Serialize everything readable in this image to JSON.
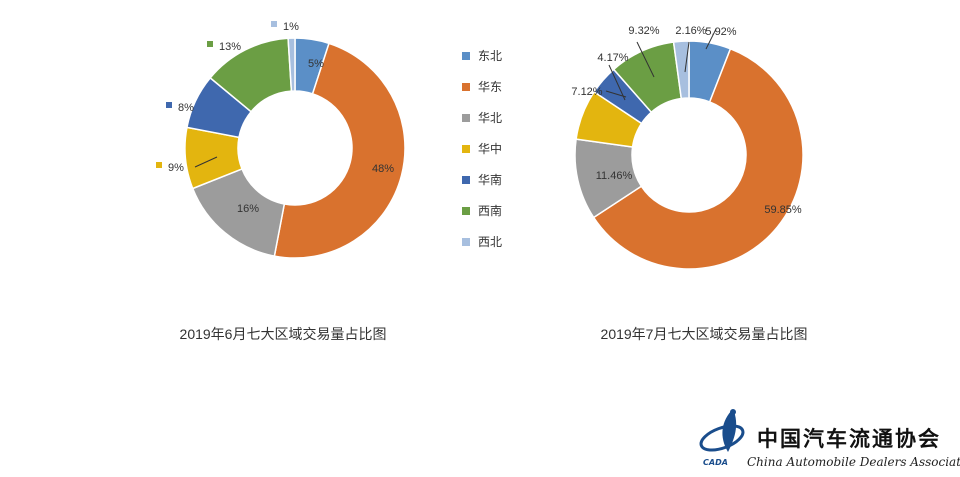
{
  "colors": {
    "东北": "#5b8fc7",
    "华东": "#d9722e",
    "华北": "#9c9c9c",
    "华中": "#e3b50f",
    "华南": "#3f68ae",
    "西南": "#6b9e44",
    "西北": "#a7bfdf"
  },
  "legend": [
    "东北",
    "华东",
    "华北",
    "华中",
    "华南",
    "西南",
    "西北"
  ],
  "chart_data": [
    {
      "type": "pie",
      "donut": true,
      "title": "2019年6月七大区域交易量占比图",
      "categories": [
        "东北",
        "华东",
        "华北",
        "华中",
        "华南",
        "西南",
        "西北"
      ],
      "values": [
        5,
        48,
        16,
        9,
        8,
        13,
        1
      ],
      "labels": [
        "5%",
        "48%",
        "16%",
        "9%",
        "8%",
        "13%",
        "1%"
      ],
      "legend_position": "right"
    },
    {
      "type": "pie",
      "donut": true,
      "title": "2019年7月七大区域交易量占比图",
      "categories": [
        "东北",
        "华东",
        "华北",
        "华中",
        "华南",
        "西南",
        "西北"
      ],
      "values": [
        5.92,
        59.85,
        11.46,
        7.12,
        4.17,
        9.32,
        2.16
      ],
      "labels": [
        "5.92%",
        "59.85%",
        "11.46%",
        "7.12%",
        "4.17%",
        "9.32%",
        "2.16%"
      ]
    }
  ],
  "logo": {
    "name_cn": "中国汽车流通协会",
    "name_en": "China Automobile Dealers Association",
    "abbr": "CADA"
  }
}
